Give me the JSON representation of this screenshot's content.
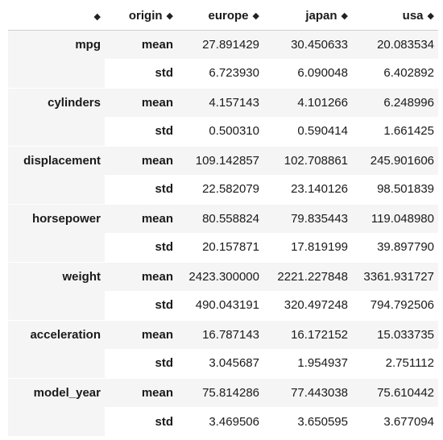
{
  "table": {
    "sort_glyph": "◆",
    "index_header": "origin",
    "columns": [
      "europe",
      "japan",
      "usa"
    ],
    "stat_labels": [
      "mean",
      "std"
    ],
    "groups": [
      {
        "name": "mpg",
        "mean": [
          "27.891429",
          "30.450633",
          "20.083534"
        ],
        "std": [
          "6.723930",
          "6.090048",
          "6.402892"
        ]
      },
      {
        "name": "cylinders",
        "mean": [
          "4.157143",
          "4.101266",
          "6.248996"
        ],
        "std": [
          "0.500310",
          "0.590414",
          "1.661425"
        ]
      },
      {
        "name": "displacement",
        "mean": [
          "109.142857",
          "102.708861",
          "245.901606"
        ],
        "std": [
          "22.582079",
          "23.140126",
          "98.501839"
        ]
      },
      {
        "name": "horsepower",
        "mean": [
          "80.558824",
          "79.835443",
          "119.048980"
        ],
        "std": [
          "20.157871",
          "17.819199",
          "39.897790"
        ]
      },
      {
        "name": "weight",
        "mean": [
          "2423.300000",
          "2221.227848",
          "3361.931727"
        ],
        "std": [
          "490.043191",
          "320.497248",
          "794.792506"
        ]
      },
      {
        "name": "acceleration",
        "mean": [
          "16.787143",
          "16.172152",
          "15.033735"
        ],
        "std": [
          "3.045687",
          "1.954937",
          "2.751112"
        ]
      },
      {
        "name": "model_year",
        "mean": [
          "75.814286",
          "77.443038",
          "75.610442"
        ],
        "std": [
          "3.469506",
          "3.650595",
          "3.677094"
        ]
      }
    ]
  }
}
